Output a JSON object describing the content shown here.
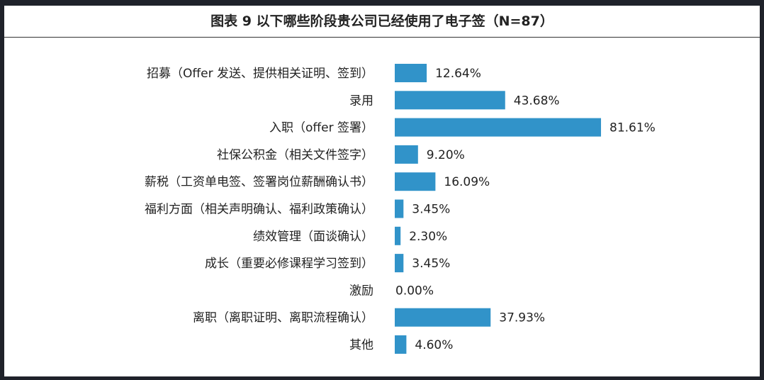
{
  "chart_data": {
    "type": "bar",
    "orientation": "horizontal",
    "title": "图表 9 以下哪些阶段贵公司已经使用了电子签（N=87）",
    "categories": [
      "招募（Offer 发送、提供相关证明、签到）",
      "录用",
      "入职（offer 签署）",
      "社保公积金（相关文件签字）",
      "薪税（工资单电签、签署岗位薪酬确认书）",
      "福利方面（相关声明确认、福利政策确认）",
      "绩效管理（面谈确认）",
      "成长（重要必修课程学习签到）",
      "激励",
      "离职（离职证明、离职流程确认）",
      "其他"
    ],
    "values": [
      12.64,
      43.68,
      81.61,
      9.2,
      16.09,
      3.45,
      2.3,
      3.45,
      0.0,
      37.93,
      4.6
    ],
    "labels": [
      "12.64%",
      "43.68%",
      "81.61%",
      "9.20%",
      "16.09%",
      "3.45%",
      "2.30%",
      "3.45%",
      "0.00%",
      "37.93%",
      "4.60%"
    ],
    "unit": "%",
    "xlim": [
      0,
      100
    ],
    "grid": false,
    "bar_color": "#3193c9"
  }
}
